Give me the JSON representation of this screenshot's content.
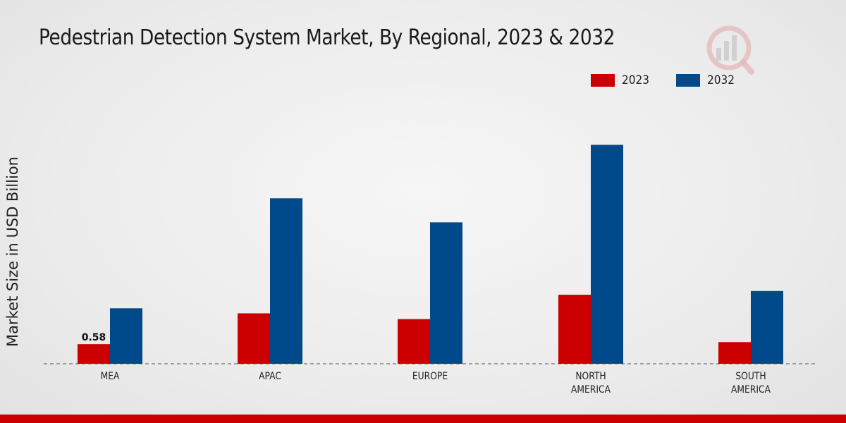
{
  "chart_data": {
    "type": "bar",
    "title": "Pedestrian Detection System Market, By Regional, 2023 & 2032",
    "ylabel": "Market Size in USD Billion",
    "xlabel": "",
    "categories": [
      "MEA",
      "APAC",
      "EUROPE",
      "NORTH AMERICA",
      "SOUTH AMERICA"
    ],
    "category_lines": [
      [
        "MEA"
      ],
      [
        "APAC"
      ],
      [
        "EUROPE"
      ],
      [
        "NORTH",
        "AMERICA"
      ],
      [
        "SOUTH",
        "AMERICA"
      ]
    ],
    "series": [
      {
        "name": "2023",
        "color": "#cc0000",
        "values": [
          0.58,
          1.49,
          1.32,
          2.04,
          0.64
        ]
      },
      {
        "name": "2032",
        "color": "#004a8c",
        "values": [
          1.64,
          4.89,
          4.18,
          6.47,
          2.15
        ]
      }
    ],
    "data_labels": [
      {
        "series": 0,
        "index": 0,
        "text": "0.58"
      }
    ],
    "ylim": [
      0,
      9.5
    ],
    "grid": false,
    "legend_position": "top-right"
  }
}
